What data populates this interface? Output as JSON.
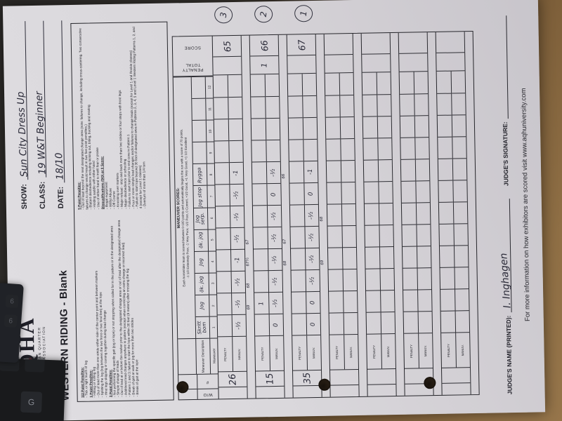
{
  "colors": {
    "paper": "#d9d7da",
    "ink": "#26262c",
    "handwriting": "#2a2a38",
    "logo_accent": "#8d2332",
    "wood": "#8a6a43"
  },
  "header": {
    "logo": {
      "acronym": "AQHA",
      "org_line1": "AMERICAN QUARTER",
      "org_line2": "HORSE ASSOCIATION"
    },
    "title": "WESTERN RIDING - Blank",
    "show_label": "SHOW:",
    "show_value": "Sun City Dress Up",
    "class_label": "CLASS:",
    "class_value": "19 W&T Beginner",
    "date_label": "DATE:",
    "date_value": "18/10"
  },
  "penalties": {
    "half_point": {
      "title": "1/2 Point Penalties:",
      "items": [
        "Tick or light touch of log"
      ]
    },
    "one_point": {
      "title": "1 Point Penalties:",
      "items": [
        "Hitting or rolling log",
        "Out of lead more than one stride either side of the center point and between markers",
        "Splitting the log (log between the two front or two hind feet) at the lope",
        "Hind legs skipping or coming together during lead change"
      ]
    },
    "three_point": {
      "title": "3 Point Penalties:",
      "items": [
        "Not performing the specific gait (jog or lope) or not stopping when called for in the pattern or in the designated area",
        "Simple change of leads",
        "Out of lead at or before the marker prior to the designated change area or out of lead after the designated change area",
        "Additional lead changes anywhere in pattern (except when correcting an extra change or incorrect lead)",
        "Pattern 1 and 3: failure to start the lope within 30 feet (9 meters) after crossing the log",
        "Break of gait at walk or jog for more than two strides",
        "Break of gait at the lope"
      ]
    },
    "five_point": {
      "title": "5 Point Penalties:",
      "items": [
        "Out of lead beyond the next designated change area (note: failures to change, including cross-cantering. Two consecutive failures to change would result in two five point penalties.)",
        "Blatant disobedience including kicking out, biting, bucking and rearing",
        "Holding saddle with either hand",
        "Use of either hand to instill fear or praise"
      ]
    },
    "disqualifications": {
      "title": "Disqualifications (DQ) or 0 Score:",
      "items": [
        "Illegal equipment",
        "Willful Abuse",
        "Off Course",
        "Knocking over markers",
        "Major refusal - stop and back more than two strides or four steps with front legs",
        "Major disobedience or schooling",
        "Failure to start lope prior to end cone in Pattern 1",
        "Four or more simple lead changes and/or failures to change leads (except for Level 1 and Rookie classes)",
        "Failure to start lope beyond 30 feet of designated area in Patterns 2, 3, 4, 5 and Level 1 Western Riding Patterns 1, 2, and 4 (except for Level 1 classes)",
        "Overturn of more than 1/4 turn"
      ]
    }
  },
  "maneuver_scores": {
    "title": "MANEUVER SCORES:",
    "line1": "Each horse/rider team is scored between 0-100 points and automatically begins the run with a score of 70 points.",
    "line2": "-1 1/2 Extremely Poor, -1 Very Poor, -1/2 Poor, 0 Correct, +1/2 Good, +1 Very Good, +1 1/2 Excellent"
  },
  "table": {
    "col_headers": {
      "wo": "W/O",
      "num": "#",
      "maneuver_description": "Maneuver Description",
      "maneuver": "Maneuver",
      "penalty_total": "PENALTY TOTAL",
      "score": "SCORE",
      "penalty_row": "PENALTY",
      "manuv_row": "MANUV."
    },
    "maneuver_numbers": [
      "1",
      "2",
      "3",
      "4",
      "5",
      "6",
      "7",
      "8",
      "9",
      "10",
      "11",
      "12"
    ],
    "maneuver_descriptions": [
      "Skritt bom",
      "Jog",
      "ök. jog",
      "Jog",
      "ök. jog",
      "Jog serp.",
      "Jog stop",
      "Rygga",
      "",
      "",
      "",
      ""
    ],
    "entries": [
      {
        "number": "26",
        "penalty": [
          "",
          "",
          "",
          "",
          "",
          "",
          "",
          "",
          "",
          "",
          "",
          ""
        ],
        "manuv": [
          "-½",
          "-½",
          "-½",
          "-1",
          "-½",
          "-½",
          "-½",
          "-1",
          "",
          "",
          "",
          ""
        ],
        "tally": [
          "",
          "69",
          "68",
          "67½",
          "67",
          "",
          "",
          "",
          "",
          "",
          "",
          ""
        ],
        "penalty_total": "",
        "score": "65",
        "placing": "3"
      },
      {
        "number": "15",
        "penalty": [
          "",
          "1",
          "",
          "",
          "",
          "",
          "",
          "",
          "",
          "",
          "",
          ""
        ],
        "manuv": [
          "0",
          "-½",
          "-½",
          "-½",
          "-½",
          "-½",
          "0",
          "-½",
          "",
          "",
          "",
          ""
        ],
        "tally": [
          "",
          "",
          "",
          "68",
          "67",
          "",
          "",
          "66",
          "",
          "",
          "",
          ""
        ],
        "penalty_total": "1",
        "score": "66",
        "placing": "2"
      },
      {
        "number": "35",
        "penalty": [
          "",
          "",
          "",
          "",
          "",
          "",
          "",
          "",
          "",
          "",
          "",
          ""
        ],
        "manuv": [
          "0",
          "0",
          "-½",
          "-½",
          "-½",
          "-½",
          "0",
          "-1",
          "",
          "",
          "",
          ""
        ],
        "tally": [
          "",
          "",
          "",
          "69",
          "",
          "68",
          "",
          "",
          "",
          "",
          "",
          ""
        ],
        "penalty_total": "",
        "score": "67",
        "placing": "1"
      },
      {
        "number": "",
        "penalty": [
          "",
          "",
          "",
          "",
          "",
          "",
          "",
          "",
          "",
          "",
          "",
          ""
        ],
        "manuv": [
          "",
          "",
          "",
          "",
          "",
          "",
          "",
          "",
          "",
          "",
          "",
          ""
        ],
        "tally": [
          "",
          "",
          "",
          "",
          "",
          "",
          "",
          "",
          "",
          "",
          "",
          ""
        ],
        "penalty_total": "",
        "score": "",
        "placing": ""
      },
      {
        "number": "",
        "penalty": [
          "",
          "",
          "",
          "",
          "",
          "",
          "",
          "",
          "",
          "",
          "",
          ""
        ],
        "manuv": [
          "",
          "",
          "",
          "",
          "",
          "",
          "",
          "",
          "",
          "",
          "",
          ""
        ],
        "tally": [
          "",
          "",
          "",
          "",
          "",
          "",
          "",
          "",
          "",
          "",
          "",
          ""
        ],
        "penalty_total": "",
        "score": "",
        "placing": ""
      },
      {
        "number": "",
        "penalty": [
          "",
          "",
          "",
          "",
          "",
          "",
          "",
          "",
          "",
          "",
          "",
          ""
        ],
        "manuv": [
          "",
          "",
          "",
          "",
          "",
          "",
          "",
          "",
          "",
          "",
          "",
          ""
        ],
        "tally": [
          "",
          "",
          "",
          "",
          "",
          "",
          "",
          "",
          "",
          "",
          "",
          ""
        ],
        "penalty_total": "",
        "score": "",
        "placing": ""
      },
      {
        "number": "",
        "penalty": [
          "",
          "",
          "",
          "",
          "",
          "",
          "",
          "",
          "",
          "",
          "",
          ""
        ],
        "manuv": [
          "",
          "",
          "",
          "",
          "",
          "",
          "",
          "",
          "",
          "",
          "",
          ""
        ],
        "tally": [
          "",
          "",
          "",
          "",
          "",
          "",
          "",
          "",
          "",
          "",
          "",
          ""
        ],
        "penalty_total": "",
        "score": "",
        "placing": ""
      }
    ]
  },
  "signatures": {
    "judge_name_label": "JUDGE'S NAME (PRINTED):",
    "judge_name_value": "I. Inghagen",
    "judge_signature_label": "JUDGE'S SIGNATURE:"
  },
  "footer_note": "For more information on how exhibitors are scored visit www.aqhuniversity.com",
  "desk": {
    "visible_keys": [
      "G",
      "6",
      "6"
    ]
  }
}
